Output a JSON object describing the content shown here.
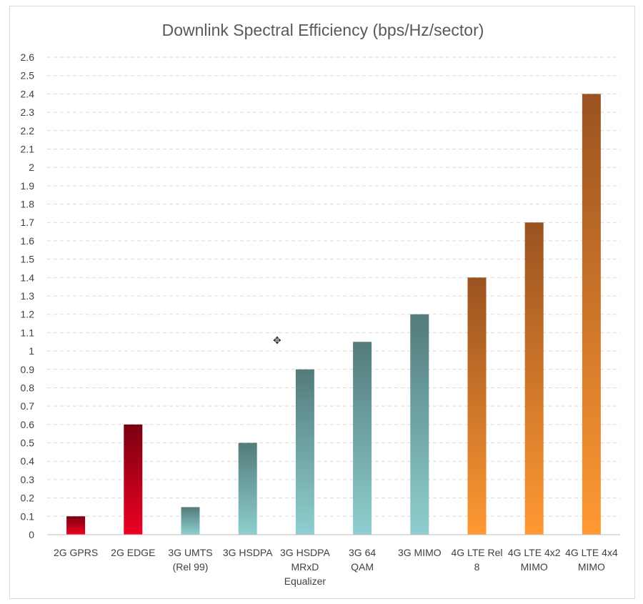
{
  "chart_data": {
    "type": "bar",
    "title": "Downlink Spectral Efficiency (bps/Hz/sector)",
    "xlabel": "",
    "ylabel": "",
    "ylim": [
      0,
      2.6
    ],
    "yticks": [
      "0",
      "0.1",
      "0.2",
      "0.3",
      "0.4",
      "0.5",
      "0.6",
      "0.7",
      "0.8",
      "0.9",
      "1",
      "1.1",
      "1.2",
      "1.3",
      "1.4",
      "1.5",
      "1.6",
      "1.7",
      "1.8",
      "1.9",
      "2",
      "2.1",
      "2.2",
      "2.3",
      "2.4",
      "2.5",
      "2.6"
    ],
    "grid": true,
    "categories": [
      [
        "2G GPRS"
      ],
      [
        "2G EDGE"
      ],
      [
        "3G UMTS",
        "(Rel 99)"
      ],
      [
        "3G HSDPA"
      ],
      [
        "3G HSDPA",
        "MRxD",
        "Equalizer"
      ],
      [
        "3G 64",
        "QAM"
      ],
      [
        "3G MIMO"
      ],
      [
        "4G LTE  Rel",
        "8"
      ],
      [
        "4G LTE  4x2",
        "MIMO"
      ],
      [
        "4G LTE  4x4",
        "MIMO"
      ]
    ],
    "values": [
      0.1,
      0.6,
      0.15,
      0.5,
      0.9,
      1.05,
      1.2,
      1.4,
      1.7,
      2.4
    ],
    "generation": [
      "2G",
      "2G",
      "3G",
      "3G",
      "3G",
      "3G",
      "3G",
      "4G",
      "4G",
      "4G"
    ],
    "colors": {
      "2G": {
        "top": "#7a0011",
        "bottom": "#ee0022"
      },
      "3G": {
        "top": "#537b7b",
        "bottom": "#8fcfcf"
      },
      "4G": {
        "top": "#9a5320",
        "bottom": "#ff9933"
      },
      "grid": "#d9d9d9",
      "axis": "#bfbfbf",
      "text": "#404040",
      "title": "#595959"
    }
  },
  "overlay": {
    "cursor_icon": "move-cursor-icon"
  }
}
